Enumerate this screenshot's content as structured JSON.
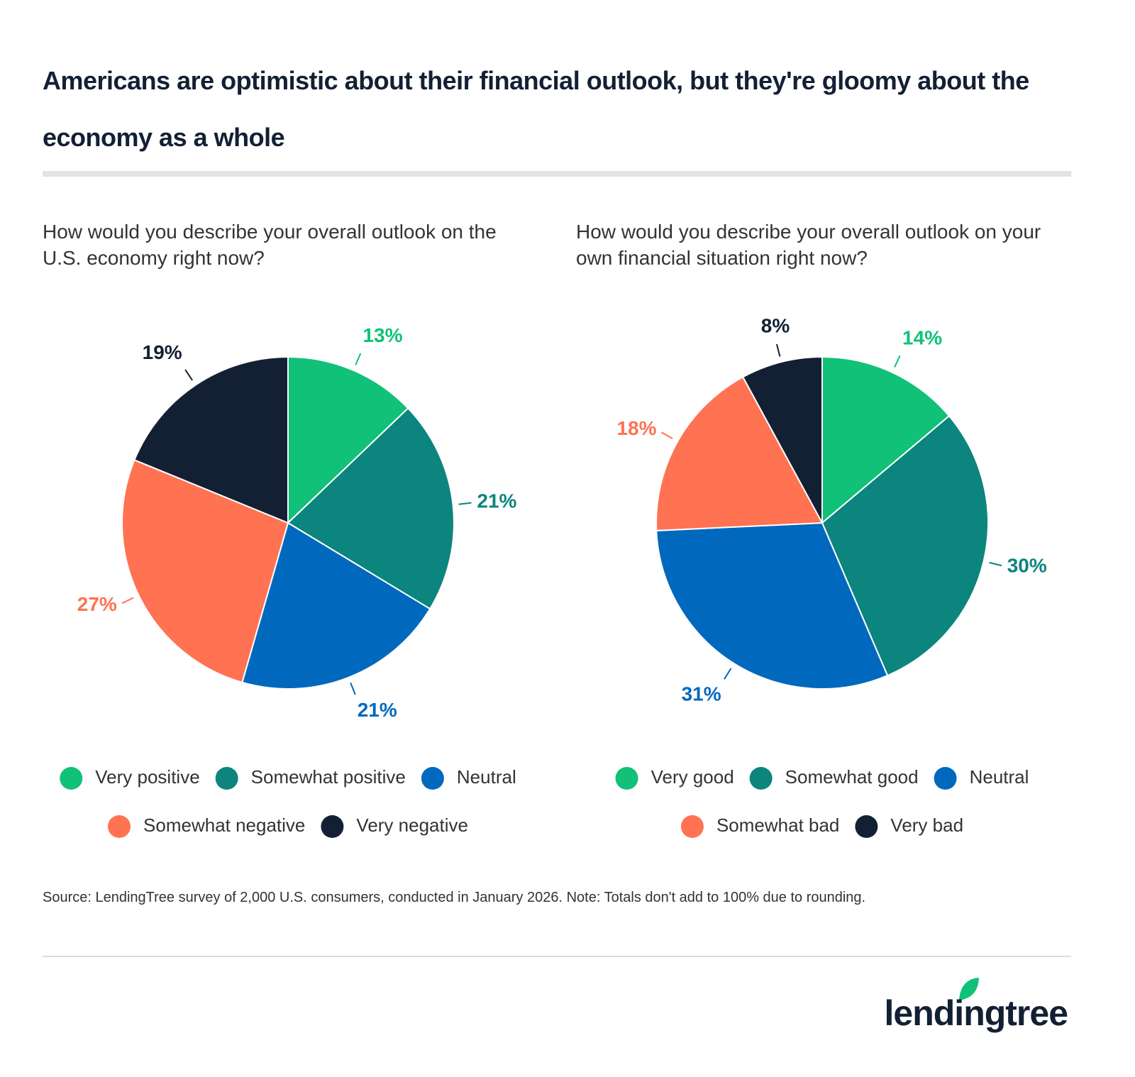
{
  "title": "Americans are optimistic about their financial outlook, but they're gloomy about the economy as a whole",
  "chart_data": [
    {
      "type": "pie",
      "subtitle": "How would you describe your overall outlook on the U.S. economy right now?",
      "categories": [
        "Very positive",
        "Somewhat positive",
        "Neutral",
        "Somewhat negative",
        "Very negative"
      ],
      "values": [
        13,
        21,
        21,
        27,
        19
      ],
      "value_labels": [
        "13%",
        "21%",
        "21%",
        "27%",
        "19%"
      ],
      "colors": [
        "#10c177",
        "#0b857d",
        "#0069be",
        "#ff7252",
        "#132034"
      ]
    },
    {
      "type": "pie",
      "subtitle": "How would you describe your overall outlook on your own financial situation right now?",
      "categories": [
        "Very good",
        "Somewhat good",
        "Neutral",
        "Somewhat bad",
        "Very bad"
      ],
      "values": [
        14,
        30,
        31,
        18,
        8
      ],
      "value_labels": [
        "14%",
        "30%",
        "31%",
        "18%",
        "8%"
      ],
      "colors": [
        "#10c177",
        "#0b857d",
        "#0069be",
        "#ff7252",
        "#132034"
      ]
    }
  ],
  "source": "Source: LendingTree survey of 2,000 U.S. consumers, conducted in January 2026. Note: Totals don't add to 100% due to rounding.",
  "logo": "lendingtree"
}
